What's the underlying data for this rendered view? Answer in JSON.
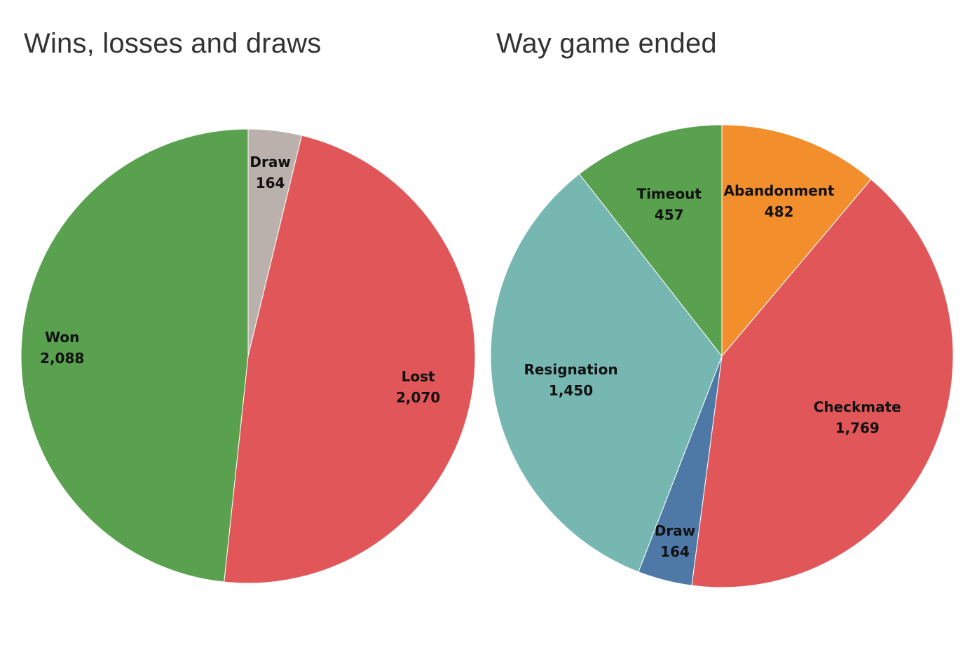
{
  "chart_data": [
    {
      "type": "pie",
      "title": "Wins, losses and draws",
      "slices": [
        {
          "label": "Draw",
          "value": 164,
          "display": "164",
          "color": "#bab0ac"
        },
        {
          "label": "Lost",
          "value": 2070,
          "display": "2,070",
          "color": "#e15759"
        },
        {
          "label": "Won",
          "value": 2088,
          "display": "2,088",
          "color": "#59a14f"
        }
      ]
    },
    {
      "type": "pie",
      "title": "Way game ended",
      "slices": [
        {
          "label": "Abandonment",
          "value": 482,
          "display": "482",
          "color": "#f28e2b"
        },
        {
          "label": "Checkmate",
          "value": 1769,
          "display": "1,769",
          "color": "#e15759"
        },
        {
          "label": "Draw",
          "value": 164,
          "display": "164",
          "color": "#4e79a7"
        },
        {
          "label": "Resignation",
          "value": 1450,
          "display": "1,450",
          "color": "#76b7b2"
        },
        {
          "label": "Timeout",
          "value": 457,
          "display": "457",
          "color": "#59a14f"
        }
      ]
    }
  ]
}
